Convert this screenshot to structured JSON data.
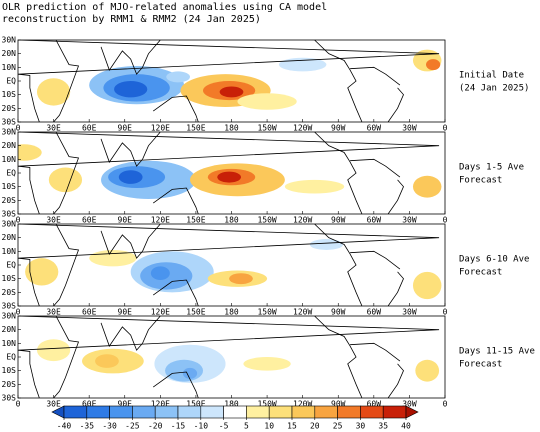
{
  "title": [
    "OLR prediction of MJO-related anomalies using CA model",
    "reconstruction by RMM1 & RMM2 (24 Jan 2025)"
  ],
  "panels": [
    {
      "label": [
        "Initial Date",
        "(24 Jan 2025)"
      ]
    },
    {
      "label": [
        "Days 1-5 Ave",
        "Forecast"
      ]
    },
    {
      "label": [
        "Days 6-10 Ave",
        "Forecast"
      ]
    },
    {
      "label": [
        "Days 11-15 Ave",
        "Forecast"
      ]
    }
  ],
  "lat_labels": [
    "30N",
    "20N",
    "10N",
    "EQ",
    "10S",
    "20S",
    "30S"
  ],
  "lon_labels": [
    "0",
    "30E",
    "60E",
    "90E",
    "120E",
    "150E",
    "180",
    "150W",
    "120W",
    "90W",
    "60W",
    "30W",
    "0"
  ],
  "colorbar": {
    "ticks": [
      -40,
      -35,
      -30,
      -25,
      -20,
      -15,
      -10,
      -5,
      5,
      10,
      15,
      20,
      25,
      30,
      35,
      40
    ],
    "colors": [
      "#1550c0",
      "#1e64d8",
      "#2f7be6",
      "#4a94ee",
      "#6aaaf2",
      "#8cc2f6",
      "#aed6fa",
      "#cde6fc",
      "#ffffff",
      "#fff0a0",
      "#fde07a",
      "#fbc85a",
      "#f8a440",
      "#f27a28",
      "#e44a16",
      "#c82008",
      "#a81000"
    ]
  }
}
